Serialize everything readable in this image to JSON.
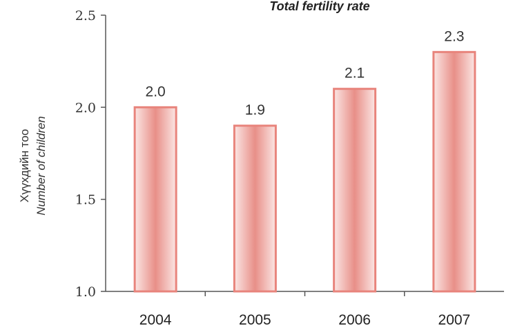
{
  "chart_data": {
    "type": "bar",
    "title": "Total fertility rate",
    "ylabel": "Хүүхдийн тоо",
    "ylabel_sub": "Number of children",
    "xlabel": "",
    "categories": [
      "2004",
      "2005",
      "2006",
      "2007"
    ],
    "values": [
      2.0,
      1.9,
      2.1,
      2.3
    ],
    "data_labels": [
      "2.0",
      "1.9",
      "2.1",
      "2.3"
    ],
    "ylim": [
      1.0,
      2.5
    ],
    "yticks": [
      "1.0",
      "1.5",
      "2.0",
      "2.5"
    ],
    "grid": false,
    "colors": {
      "bar_edge": "#e8847c",
      "bar_center": "#e88f88",
      "bar_side": "#fbe6e4",
      "axis": "#555555"
    }
  }
}
